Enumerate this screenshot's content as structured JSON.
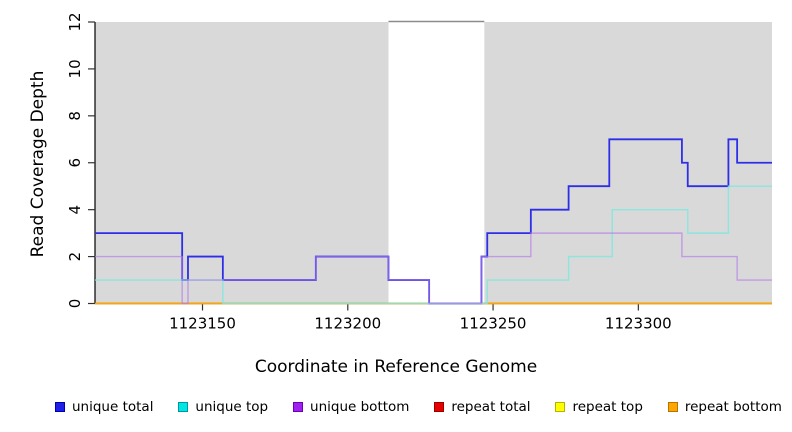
{
  "figure": {
    "background": "#ffffff",
    "plot_background": "#d9d9d9",
    "gap_background": "#ffffff",
    "axis_color": "#000000",
    "tick_color": "#333333"
  },
  "chart_data": {
    "type": "line",
    "subtype": "step-coverage",
    "title": "",
    "xlabel": "Coordinate in Reference Genome",
    "ylabel": "Read Coverage Depth",
    "xlim": [
      1123113,
      1123346
    ],
    "ylim": [
      0,
      12
    ],
    "xticks": [
      1123150,
      1123200,
      1123250,
      1123300
    ],
    "yticks": [
      0,
      2,
      4,
      6,
      8,
      10,
      12
    ],
    "grid": false,
    "legend_position": "bottom",
    "shaded_regions": [
      {
        "x0": 1123113,
        "x1": 1123214
      },
      {
        "x0": 1123247,
        "x1": 1123346
      }
    ],
    "gap_region": {
      "x0": 1123214,
      "x1": 1123247,
      "top_border_color": "#8c8c8c"
    },
    "draw_order": [
      3,
      4,
      5,
      0,
      1,
      2
    ],
    "series": [
      {
        "name": "unique total",
        "legend_color": "#1f1fe8",
        "legend_border": "#0000b3",
        "line_color": "#2e2ee8",
        "line_opacity": 1,
        "line_width": 1.8,
        "points": [
          [
            1123113,
            3
          ],
          [
            1123143,
            1
          ],
          [
            1123145,
            2
          ],
          [
            1123157,
            1
          ],
          [
            1123189,
            2
          ],
          [
            1123214,
            1
          ],
          [
            1123228,
            0
          ],
          [
            1123246,
            2
          ],
          [
            1123248,
            3
          ],
          [
            1123263,
            4
          ],
          [
            1123276,
            5
          ],
          [
            1123290,
            7
          ],
          [
            1123315,
            6
          ],
          [
            1123317,
            5
          ],
          [
            1123331,
            7
          ],
          [
            1123334,
            6
          ]
        ]
      },
      {
        "name": "unique top",
        "legend_color": "#00e5e5",
        "legend_border": "#009999",
        "line_color": "#7de8de",
        "line_opacity": 0.85,
        "line_width": 1.4,
        "points": [
          [
            1123113,
            1
          ],
          [
            1123157,
            0
          ],
          [
            1123248,
            1
          ],
          [
            1123276,
            2
          ],
          [
            1123291,
            4
          ],
          [
            1123317,
            3
          ],
          [
            1123331,
            5
          ]
        ]
      },
      {
        "name": "unique bottom",
        "legend_color": "#a020f0",
        "legend_border": "#6a00b8",
        "line_color": "#b47ae6",
        "line_opacity": 0.65,
        "line_width": 1.4,
        "points": [
          [
            1123113,
            2
          ],
          [
            1123143,
            0
          ],
          [
            1123145,
            1
          ],
          [
            1123189,
            2
          ],
          [
            1123214,
            1
          ],
          [
            1123228,
            0
          ],
          [
            1123246,
            2
          ],
          [
            1123263,
            3
          ],
          [
            1123315,
            2
          ],
          [
            1123334,
            1
          ]
        ]
      },
      {
        "name": "repeat total",
        "legend_color": "#e60000",
        "legend_border": "#990000",
        "line_color": "#e60000",
        "line_opacity": 1,
        "line_width": 1.2,
        "points": [
          [
            1123113,
            0
          ]
        ]
      },
      {
        "name": "repeat top",
        "legend_color": "#ffff00",
        "legend_border": "#b3b300",
        "line_color": "#ffff00",
        "line_opacity": 1,
        "line_width": 1.2,
        "points": [
          [
            1123113,
            0
          ]
        ]
      },
      {
        "name": "repeat bottom",
        "legend_color": "#ffa500",
        "legend_border": "#b37400",
        "line_color": "#ffa500",
        "line_opacity": 1,
        "line_width": 1.4,
        "points": [
          [
            1123113,
            0
          ]
        ]
      }
    ]
  }
}
